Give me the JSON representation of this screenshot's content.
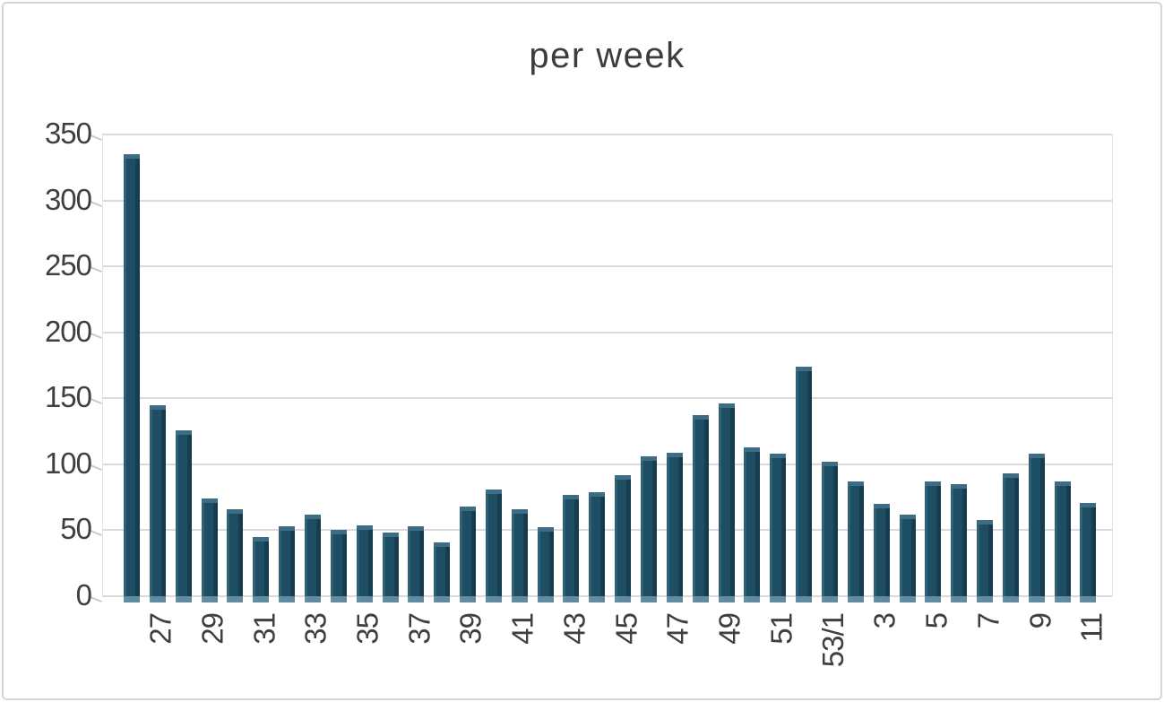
{
  "frame": {
    "background": "#ffffff",
    "border_color": "#d5d5d5"
  },
  "chart_data": {
    "type": "bar",
    "title": "per week",
    "xlabel": "",
    "ylabel": "",
    "ylim": [
      0,
      350
    ],
    "ytick_step": 50,
    "ytick_labels": [
      "0",
      "50",
      "100",
      "150",
      "200",
      "250",
      "300",
      "350"
    ],
    "grid": "horizontal",
    "legend": "none",
    "bar_color": "#1e4e64",
    "x_labels_shown": [
      "27",
      "29",
      "31",
      "33",
      "35",
      "37",
      "39",
      "41",
      "43",
      "45",
      "47",
      "49",
      "51",
      "53/1",
      "3",
      "5",
      "7",
      "9",
      "11"
    ],
    "label_every_n_bars": 2,
    "bars": [
      {
        "label": "27",
        "value": 335
      },
      {
        "label": "",
        "value": 145
      },
      {
        "label": "29",
        "value": 126
      },
      {
        "label": "",
        "value": 74
      },
      {
        "label": "31",
        "value": 66
      },
      {
        "label": "",
        "value": 45
      },
      {
        "label": "33",
        "value": 53
      },
      {
        "label": "",
        "value": 62
      },
      {
        "label": "35",
        "value": 50
      },
      {
        "label": "",
        "value": 54
      },
      {
        "label": "37",
        "value": 48
      },
      {
        "label": "",
        "value": 53
      },
      {
        "label": "39",
        "value": 41
      },
      {
        "label": "",
        "value": 68
      },
      {
        "label": "41",
        "value": 81
      },
      {
        "label": "",
        "value": 66
      },
      {
        "label": "43",
        "value": 52
      },
      {
        "label": "",
        "value": 77
      },
      {
        "label": "45",
        "value": 79
      },
      {
        "label": "",
        "value": 92
      },
      {
        "label": "47",
        "value": 106
      },
      {
        "label": "",
        "value": 109
      },
      {
        "label": "49",
        "value": 137
      },
      {
        "label": "",
        "value": 146
      },
      {
        "label": "51",
        "value": 113
      },
      {
        "label": "",
        "value": 108
      },
      {
        "label": "53/1",
        "value": 174
      },
      {
        "label": "",
        "value": 102
      },
      {
        "label": "3",
        "value": 87
      },
      {
        "label": "",
        "value": 70
      },
      {
        "label": "5",
        "value": 62
      },
      {
        "label": "",
        "value": 87
      },
      {
        "label": "7",
        "value": 85
      },
      {
        "label": "",
        "value": 58
      },
      {
        "label": "9",
        "value": 93
      },
      {
        "label": "",
        "value": 108
      },
      {
        "label": "11",
        "value": 87
      },
      {
        "label": "",
        "value": 71
      }
    ]
  }
}
